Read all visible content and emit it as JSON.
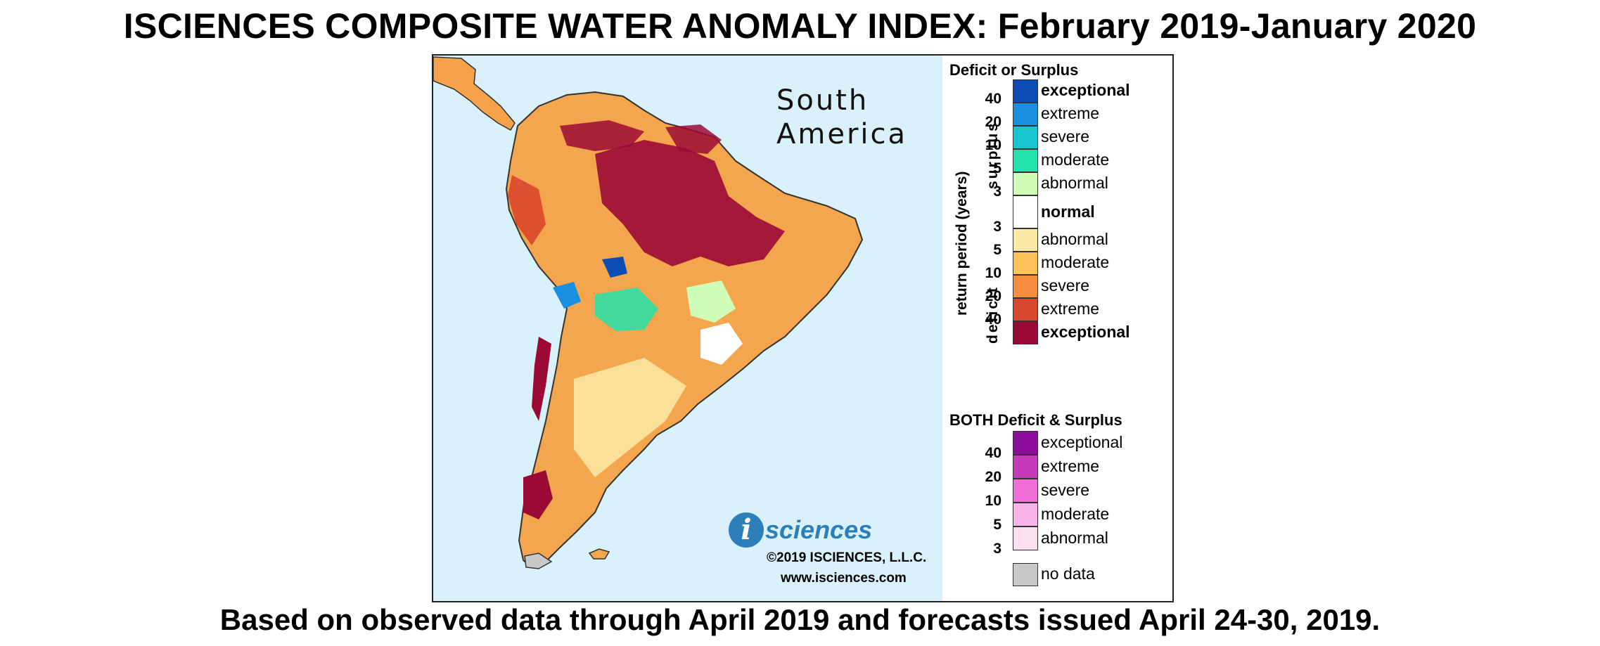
{
  "title": "ISCIENCES COMPOSITE WATER ANOMALY INDEX: February 2019-January 2020",
  "subtitle": "Based on observed data through April 2019 and forecasts issued April 24-30, 2019.",
  "map": {
    "region_line1": "South",
    "region_line2": "America",
    "brand_letter": "i",
    "brand_word": "sciences",
    "copyright": "©2019 ISCIENCES, L.L.C.",
    "website": "www.isciences.com",
    "colors": {
      "ocean": "#d9f1fb",
      "border": "#333333"
    }
  },
  "legend": {
    "deficit_surplus_heading": "Deficit or Surplus",
    "return_period_axis": "return period (years)",
    "surplus_axis": "surplus",
    "deficit_axis": "deficit",
    "surplus_ticks": [
      "40",
      "20",
      "10",
      "5",
      "3"
    ],
    "deficit_ticks": [
      "3",
      "5",
      "10",
      "20",
      "40"
    ],
    "surplus_classes": [
      {
        "label": "exceptional",
        "color": "#0b4db5",
        "bold": true
      },
      {
        "label": "extreme",
        "color": "#1a8ee0",
        "bold": false
      },
      {
        "label": "severe",
        "color": "#17c6cf",
        "bold": false
      },
      {
        "label": "moderate",
        "color": "#22e2ae",
        "bold": false
      },
      {
        "label": "abnormal",
        "color": "#cffcb6",
        "bold": false
      }
    ],
    "normal": {
      "label": "normal",
      "color": "#ffffff"
    },
    "deficit_classes": [
      {
        "label": "abnormal",
        "color": "#fde9a6",
        "bold": false
      },
      {
        "label": "moderate",
        "color": "#fbc35a",
        "bold": false
      },
      {
        "label": "severe",
        "color": "#f68d3c",
        "bold": false
      },
      {
        "label": "extreme",
        "color": "#d9472e",
        "bold": false
      },
      {
        "label": "exceptional",
        "color": "#9b0a35",
        "bold": true
      }
    ],
    "both_heading": "BOTH Deficit & Surplus",
    "both_ticks": [
      "40",
      "20",
      "10",
      "5",
      "3"
    ],
    "both_classes": [
      {
        "label": "exceptional",
        "color": "#8a0b9c"
      },
      {
        "label": "extreme",
        "color": "#c43ab8"
      },
      {
        "label": "severe",
        "color": "#f06fd6"
      },
      {
        "label": "moderate",
        "color": "#f9b4ea"
      },
      {
        "label": "abnormal",
        "color": "#fde0f0"
      }
    ],
    "no_data": {
      "label": "no data",
      "color": "#c8c8c8"
    }
  }
}
